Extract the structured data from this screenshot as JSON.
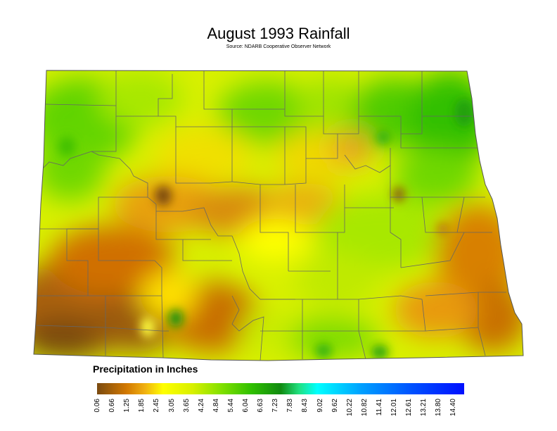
{
  "title": "August 1993 Rainfall",
  "source": "Source: NDARB Cooperative Observer Network",
  "legend": {
    "title": "Precipitation in Inches",
    "ticks": [
      "0.06",
      "0.66",
      "1.25",
      "1.85",
      "2.45",
      "3.05",
      "3.65",
      "4.24",
      "4.84",
      "5.44",
      "6.04",
      "6.63",
      "7.23",
      "7.83",
      "8.43",
      "9.02",
      "9.62",
      "10.22",
      "10.82",
      "11.41",
      "12.01",
      "12.61",
      "13.21",
      "13.80",
      "14.40"
    ],
    "colors": [
      "#7a4a10",
      "#c86e00",
      "#e89a10",
      "#f5d200",
      "#ffff00",
      "#d8f000",
      "#a8e800",
      "#70d800",
      "#30c000",
      "#109010",
      "#00ff90",
      "#00ffff",
      "#00c0ff",
      "#0090ff",
      "#0050ff",
      "#0010ff"
    ]
  },
  "map_colors": {
    "brown": "#7a4a10",
    "orange": "#d27800",
    "yellow": "#ffff00",
    "lime": "#a8e800",
    "green": "#30c000"
  }
}
